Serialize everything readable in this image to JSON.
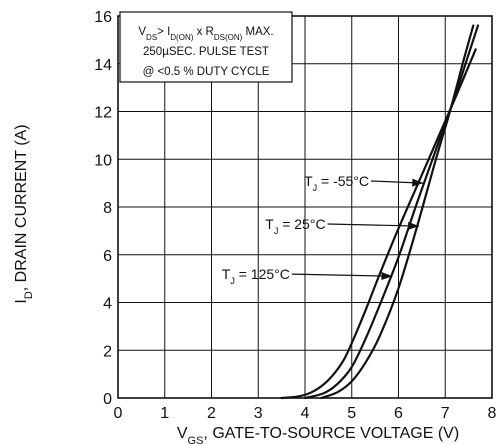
{
  "chart_data": {
    "type": "line",
    "xlabel": {
      "prefix": "V",
      "sub": "GS",
      "rest": ", GATE-TO-SOURCE VOLTAGE (V)"
    },
    "ylabel": {
      "prefix": "I",
      "sub": "D",
      "rest": ", DRAIN CURRENT (A)"
    },
    "xlim": [
      0,
      8
    ],
    "ylim": [
      0,
      16
    ],
    "xticks": [
      0,
      1,
      2,
      3,
      4,
      5,
      6,
      7,
      8
    ],
    "yticks": [
      0,
      2,
      4,
      6,
      8,
      10,
      12,
      14,
      16
    ],
    "grid": true,
    "test_conditions": {
      "line1": {
        "v": "V",
        "v_sub": "DS",
        "gt": "> I",
        "i_sub": "D(ON)",
        "x": " x R",
        "r_sub": "DS(ON)",
        "tail": " MAX."
      },
      "line2": "250µSEC. PULSE TEST",
      "line3": "@ <0.5 % DUTY CYCLE"
    },
    "series": [
      {
        "label_prefix": "T",
        "label_sub": "J",
        "label_rest": " = -55°C",
        "points": [
          [
            3.5,
            0.0
          ],
          [
            3.9,
            0.08
          ],
          [
            4.2,
            0.3
          ],
          [
            4.5,
            0.75
          ],
          [
            4.8,
            1.5
          ],
          [
            5.0,
            2.3
          ],
          [
            5.3,
            3.7
          ],
          [
            5.6,
            5.2
          ],
          [
            6.0,
            7.1
          ],
          [
            6.4,
            8.9
          ],
          [
            6.8,
            10.7
          ],
          [
            7.2,
            12.5
          ],
          [
            7.5,
            13.9
          ],
          [
            7.65,
            14.6
          ]
        ],
        "label_anchor": [
          6.53,
          9.0
        ]
      },
      {
        "label_prefix": "T",
        "label_sub": "J",
        "label_rest": " = 25°C",
        "points": [
          [
            4.0,
            0.0
          ],
          [
            4.4,
            0.2
          ],
          [
            4.7,
            0.6
          ],
          [
            5.0,
            1.3
          ],
          [
            5.3,
            2.5
          ],
          [
            5.6,
            3.9
          ],
          [
            6.0,
            5.9
          ],
          [
            6.4,
            8.2
          ],
          [
            6.8,
            10.4
          ],
          [
            7.2,
            12.6
          ],
          [
            7.5,
            14.4
          ],
          [
            7.7,
            15.6
          ]
        ],
        "label_anchor": [
          6.44,
          7.2
        ]
      },
      {
        "label_prefix": "T",
        "label_sub": "J",
        "label_rest": " = 125°C",
        "points": [
          [
            4.35,
            0.0
          ],
          [
            4.7,
            0.25
          ],
          [
            5.0,
            0.7
          ],
          [
            5.3,
            1.5
          ],
          [
            5.6,
            2.6
          ],
          [
            6.0,
            4.6
          ],
          [
            6.4,
            7.2
          ],
          [
            6.8,
            10.0
          ],
          [
            7.1,
            12.0
          ],
          [
            7.4,
            14.2
          ],
          [
            7.6,
            15.6
          ]
        ],
        "label_anchor": [
          5.87,
          5.1
        ]
      }
    ],
    "annotations": [
      {
        "series": 0,
        "text_x": 3.98,
        "text_y": 8.88
      },
      {
        "series": 1,
        "text_x": 3.15,
        "text_y": 7.08
      },
      {
        "series": 2,
        "text_x": 2.22,
        "text_y": 4.98
      }
    ]
  }
}
